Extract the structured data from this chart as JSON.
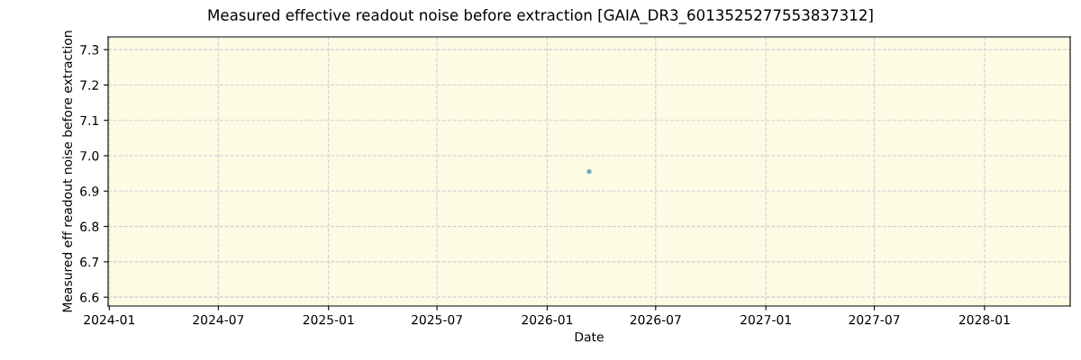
{
  "chart_data": {
    "type": "scatter",
    "title": "Measured effective readout noise before extraction [GAIA_DR3_6013525277553837312]",
    "xlabel": "Date",
    "ylabel": "Measured eff readout noise before extraction",
    "series": [
      {
        "color": "#6aaac8",
        "x": [
          "2026-03-12"
        ],
        "values": [
          6.955
        ]
      }
    ],
    "xlim": [
      "2023-12-30",
      "2028-05-23"
    ],
    "xticks": [
      {
        "value": "2024-01-01",
        "label": "2024-01"
      },
      {
        "value": "2024-07-01",
        "label": "2024-07"
      },
      {
        "value": "2025-01-01",
        "label": "2025-01"
      },
      {
        "value": "2025-07-01",
        "label": "2025-07"
      },
      {
        "value": "2026-01-01",
        "label": "2026-01"
      },
      {
        "value": "2026-07-01",
        "label": "2026-07"
      },
      {
        "value": "2027-01-01",
        "label": "2027-01"
      },
      {
        "value": "2027-07-01",
        "label": "2027-07"
      },
      {
        "value": "2028-01-01",
        "label": "2028-01"
      }
    ],
    "ylim": [
      6.575,
      7.336
    ],
    "yticks": [
      6.6,
      6.7,
      6.8,
      6.9,
      {
        "value": 7.0,
        "label": "7.0"
      },
      7.1,
      7.2,
      7.3
    ],
    "grid": true,
    "marker": "circle"
  }
}
